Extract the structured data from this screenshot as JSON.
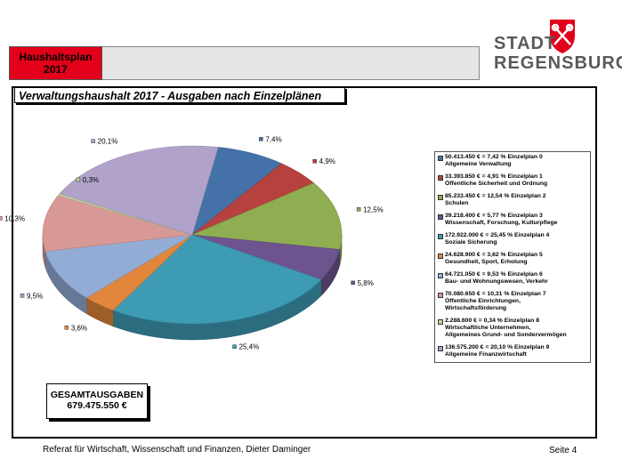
{
  "header": {
    "section_label": "Haushaltsplan\n2017"
  },
  "logo": {
    "line1": "STADT",
    "line2": "REGENSBURG",
    "shield_color": "#e2001a"
  },
  "panel": {
    "title": "Verwaltungshaushalt 2017 - Ausgaben nach Einzelplänen"
  },
  "chart_data": {
    "type": "pie",
    "title": "Verwaltungshaushalt 2017 - Ausgaben nach Einzelplänen",
    "series": [
      {
        "name": "Einzelplan 0",
        "label": "7,4%",
        "value": 7.42,
        "amount": "50.413.450 €",
        "color": "#4472a8",
        "legend": "50.413.450 € =  7,42 % Einzelplan 0\nAllgemeine Verwaltung"
      },
      {
        "name": "Einzelplan 1",
        "label": "4,9%",
        "value": 4.91,
        "amount": "33.393.850 €",
        "color": "#b6413e",
        "legend": "33.393.850 € =  4,91 % Einzelplan 1\nÖffentliche Sicherheit und Ordnung"
      },
      {
        "name": "Einzelplan 2",
        "label": "12,5%",
        "value": 12.54,
        "amount": "85.233.450 €",
        "color": "#8fad51",
        "legend": "85.233.450 € =  12,54 % Einzelplan 2\nSchulen"
      },
      {
        "name": "Einzelplan 3",
        "label": "5,8%",
        "value": 5.77,
        "amount": "39.218.400 €",
        "color": "#6d548e",
        "legend": "39.218.400 € =  5,77 % Einzelplan 3\nWissenschaft, Forschung, Kulturpflege"
      },
      {
        "name": "Einzelplan 4",
        "label": "25,4%",
        "value": 25.45,
        "amount": "172.922.000 €",
        "color": "#3d9bb4",
        "legend": "172.922.000 € =  25,45 % Einzelplan 4\nSoziale Sicherung"
      },
      {
        "name": "Einzelplan 5",
        "label": "3,6%",
        "value": 3.62,
        "amount": "24.628.900 €",
        "color": "#e2863c",
        "legend": "24.628.900 € =  3,62 % Einzelplan 5\nGesundheit, Sport, Erholung"
      },
      {
        "name": "Einzelplan 6",
        "label": "9,5%",
        "value": 9.53,
        "amount": "64.721.050 €",
        "color": "#93acd6",
        "legend": "64.721.050 € =  9,53 % Einzelplan 6\nBau- und Wohnungswesen, Verkehr"
      },
      {
        "name": "Einzelplan 7",
        "label": "10,3%",
        "value": 10.31,
        "amount": "70.080.650 €",
        "color": "#d89896",
        "legend": "70.080.650 € =  10,31 % Einzelplan 7\nÖffentliche Einrichtungen,\nWirtschaftsförderung"
      },
      {
        "name": "Einzelplan 8",
        "label": "0,3%",
        "value": 0.34,
        "amount": "2.288.600 €",
        "color": "#c3d59c",
        "legend": "2.288.600 € =  0,34 % Einzelplan 8\nWirtschaftliche Unternehmen,\nAllgemeines Grund- und Sondervermögen"
      },
      {
        "name": "Einzelplan 9",
        "label": "20,1%",
        "value": 20.1,
        "amount": "136.575.200 €",
        "color": "#b0a2c9",
        "legend": "136.575.200 € =  20,10 % Einzelplan 9\nAllgemeine Finanzwirtschaft"
      }
    ],
    "legend_position": "right",
    "start_angle_deg": -80
  },
  "total": {
    "label": "GESAMTAUSGABEN",
    "value": "679.475.550 €"
  },
  "footer": {
    "text": "Referat für Wirtschaft, Wissenschaft und Finanzen, Dieter Daminger",
    "page": "Seite 4"
  }
}
